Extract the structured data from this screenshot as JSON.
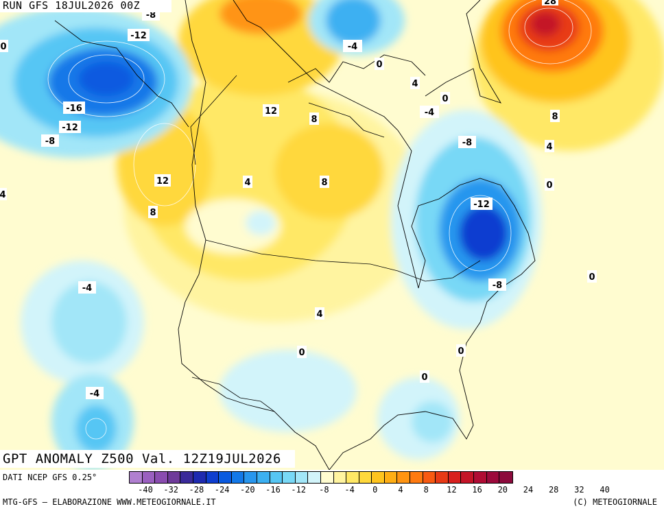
{
  "header": {
    "run": "RUN GFS 18JUL2026 00Z"
  },
  "title": "GPT ANOMALY Z500 Val. 12Z19JUL2026",
  "footer": {
    "source": "DATI NCEP GFS 0.25°",
    "elaboration": "MTG-GFS — ELABORAZIONE WWW.METEOGIORNALE.IT",
    "copyright": "(C) METEOGIORNALE"
  },
  "colorbar": {
    "colors": [
      "#b07fd0",
      "#9a5fc0",
      "#8a4cb0",
      "#6e3a9a",
      "#3a2a9a",
      "#1e2ab0",
      "#0e3ed0",
      "#0a5ae0",
      "#1378e8",
      "#2896ee",
      "#3cb0f2",
      "#56c6f4",
      "#78d8f6",
      "#a2e6f8",
      "#d2f4fa",
      "#fffcd0",
      "#fff4a0",
      "#ffe866",
      "#ffd83c",
      "#ffc41e",
      "#ffae14",
      "#ff9412",
      "#ff7a10",
      "#f85a12",
      "#e83a16",
      "#d8201e",
      "#c41428",
      "#b00c34",
      "#9c0a3c",
      "#8c0a3c"
    ],
    "ticks": [
      "-40",
      "-32",
      "-28",
      "-24",
      "-20",
      "-16",
      "-12",
      "-8",
      "-4",
      "0",
      "4",
      "8",
      "12",
      "16",
      "20",
      "24",
      "28",
      "32",
      "40"
    ]
  },
  "contour_labels": [
    "-8",
    "-12",
    "-16",
    "-12",
    "-8",
    "0",
    "-4",
    "0",
    "4",
    "0",
    "-4",
    "28",
    "12",
    "8",
    "8",
    "4",
    "-8",
    "0",
    "12",
    "4",
    "8",
    "-12",
    "8",
    "-4",
    "-8",
    "0",
    "4",
    "0",
    "0",
    "0",
    "-4",
    "4"
  ],
  "colors": {
    "neutral": "#fffcd0",
    "warm_light": "#fff4a0",
    "warm": "#ffe866",
    "warm_mid": "#ffd83c",
    "hot": "#ff9412",
    "hotter": "#f85a12",
    "hottest": "#d8201e",
    "cool_light": "#d2f4fa",
    "cool": "#a2e6f8",
    "cool_mid": "#56c6f4",
    "cold": "#2896ee",
    "colder": "#0a5ae0"
  }
}
